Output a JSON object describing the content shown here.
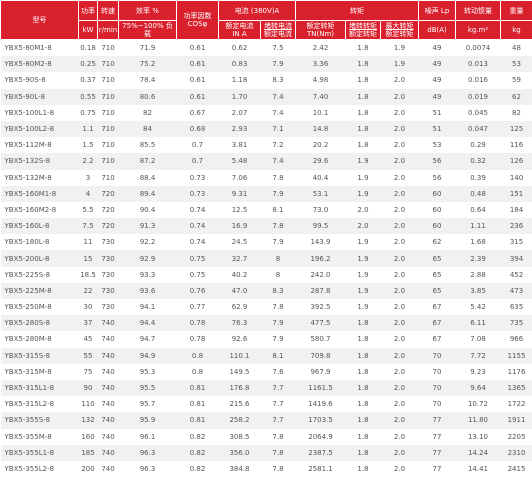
{
  "header": {
    "row1": {
      "model": "型号",
      "power": "功率",
      "speed": "转速",
      "efficiency": "效率 %",
      "pf": "功率因数",
      "pf_sub": "COSφ",
      "current": "电流 (380V)A",
      "torque": "转矩",
      "noise": "噪声 Lp",
      "inertia": "转动惯量",
      "weight": "重量"
    },
    "row2": {
      "power": "kW",
      "speed": "r/min",
      "efficiency": "75%~100% 负载",
      "current_rated": "额定电流",
      "current_rated_sub": "IN A",
      "current_ratio": {
        "top": "堵转电流",
        "bottom": "额定电流"
      },
      "torque_rated": "额定转矩",
      "torque_rated_sub": "TN(Nm)",
      "torque_locked": {
        "top": "堵转转矩",
        "bottom": "额定转矩"
      },
      "torque_max": {
        "top": "最大转矩",
        "bottom": "额定转矩"
      },
      "noise": "dB(A)",
      "inertia": "kg.m²",
      "weight": "kg"
    }
  },
  "table": {
    "rows": [
      [
        "YBX5-80M1-8",
        "0.18",
        "710",
        "71.9",
        "0.61",
        "0.62",
        "7.5",
        "2.42",
        "1.8",
        "1.9",
        "49",
        "0.0074",
        "48"
      ],
      [
        "YBX5-80M2-8",
        "0.25",
        "710",
        "75.2",
        "0.61",
        "0.83",
        "7.9",
        "3.36",
        "1.8",
        "1.9",
        "49",
        "0.013",
        "53"
      ],
      [
        "YBX5-90S-8",
        "0.37",
        "710",
        "78.4",
        "0.61",
        "1.18",
        "8.3",
        "4.98",
        "1.8",
        "2.0",
        "49",
        "0.016",
        "59"
      ],
      [
        "YBX5-90L-8",
        "0.55",
        "710",
        "80.6",
        "0.61",
        "1.70",
        "7.4",
        "7.40",
        "1.8",
        "2.0",
        "49",
        "0.019",
        "62"
      ],
      [
        "YBX5-100L1-8",
        "0.75",
        "710",
        "82",
        "0.67",
        "2.07",
        "7.4",
        "10.1",
        "1.8",
        "2.0",
        "51",
        "0.045",
        "82"
      ],
      [
        "YBX5-100L2-8",
        "1.1",
        "710",
        "84",
        "0.68",
        "2.93",
        "7.1",
        "14.8",
        "1.8",
        "2.0",
        "51",
        "0.047",
        "125"
      ],
      [
        "YBX5-112M-8",
        "1.5",
        "710",
        "85.5",
        "0.7",
        "3.81",
        "7.2",
        "20.2",
        "1.8",
        "2.0",
        "53",
        "0.29",
        "116"
      ],
      [
        "YBX5-132S-8",
        "2.2",
        "710",
        "87.2",
        "0.7",
        "5.48",
        "7.4",
        "29.6",
        "1.9",
        "2.0",
        "56",
        "0.32",
        "126"
      ],
      [
        "YBX5-132M-8",
        "3",
        "710",
        "88.4",
        "0.73",
        "7.06",
        "7.8",
        "40.4",
        "1.9",
        "2.0",
        "56",
        "0.39",
        "140"
      ],
      [
        "YBX5-160M1-8",
        "4",
        "720",
        "89.4",
        "0.73",
        "9.31",
        "7.9",
        "53.1",
        "1.9",
        "2.0",
        "60",
        "0.48",
        "151"
      ],
      [
        "YBX5-160M2-8",
        "5.5",
        "720",
        "90.4",
        "0.74",
        "12.5",
        "8.1",
        "73.0",
        "2.0",
        "2.0",
        "60",
        "0.64",
        "184"
      ],
      [
        "YBX5-160L-8",
        "7.5",
        "720",
        "91.3",
        "0.74",
        "16.9",
        "7.8",
        "99.5",
        "2.0",
        "2.0",
        "60",
        "1.11",
        "236"
      ],
      [
        "YBX5-180L-8",
        "11",
        "730",
        "92.2",
        "0.74",
        "24.5",
        "7.9",
        "143.9",
        "1.9",
        "2.0",
        "62",
        "1.68",
        "315"
      ],
      [
        "YBX5-200L-8",
        "15",
        "730",
        "92.9",
        "0.75",
        "32.7",
        "8",
        "196.2",
        "1.9",
        "2.0",
        "65",
        "2.39",
        "394"
      ],
      [
        "YBX5-225S-8",
        "18.5",
        "730",
        "93.3",
        "0.75",
        "40.2",
        "8",
        "242.0",
        "1.9",
        "2.0",
        "65",
        "2.88",
        "452"
      ],
      [
        "YBX5-225M-8",
        "22",
        "730",
        "93.6",
        "0.76",
        "47.0",
        "8.3",
        "287.8",
        "1.9",
        "2.0",
        "65",
        "3.85",
        "473"
      ],
      [
        "YBX5-250M-8",
        "30",
        "730",
        "94.1",
        "0.77",
        "62.9",
        "7.8",
        "392.5",
        "1.9",
        "2.0",
        "67",
        "5.42",
        "635"
      ],
      [
        "YBX5-280S-8",
        "37",
        "740",
        "94.4",
        "0.78",
        "76.3",
        "7.9",
        "477.5",
        "1.8",
        "2.0",
        "67",
        "6.11",
        "735"
      ],
      [
        "YBX5-280M-8",
        "45",
        "740",
        "94.7",
        "0.78",
        "92.6",
        "7.9",
        "580.7",
        "1.8",
        "2.0",
        "67",
        "7.08",
        "966"
      ],
      [
        "YBX5-315S-8",
        "55",
        "740",
        "94.9",
        "0.8",
        "110.1",
        "8.1",
        "709.8",
        "1.8",
        "2.0",
        "70",
        "7.72",
        "1155"
      ],
      [
        "YBX5-315M-8",
        "75",
        "740",
        "95.3",
        "0.8",
        "149.5",
        "7.6",
        "967.9",
        "1.8",
        "2.0",
        "70",
        "9.23",
        "1176"
      ],
      [
        "YBX5-315L1-8",
        "90",
        "740",
        "95.5",
        "0.81",
        "176.8",
        "7.7",
        "1161.5",
        "1.8",
        "2.0",
        "70",
        "9.64",
        "1365"
      ],
      [
        "YBX5-315L2-8",
        "110",
        "740",
        "95.7",
        "0.81",
        "215.6",
        "7.7",
        "1419.6",
        "1.8",
        "2.0",
        "70",
        "10.72",
        "1722"
      ],
      [
        "YBX5-355S-8",
        "132",
        "740",
        "95.9",
        "0.81",
        "258.2",
        "7.7",
        "1703.5",
        "1.8",
        "2.0",
        "77",
        "11.80",
        "1911"
      ],
      [
        "YBX5-355M-8",
        "160",
        "740",
        "96.1",
        "0.82",
        "308.5",
        "7.8",
        "2064.9",
        "1.8",
        "2.0",
        "77",
        "13.10",
        "2205"
      ],
      [
        "YBX5-355L1-8",
        "185",
        "740",
        "96.3",
        "0.82",
        "356.0",
        "7.8",
        "2387.5",
        "1.8",
        "2.0",
        "77",
        "14.24",
        "2310"
      ],
      [
        "YBX5-355L2-8",
        "200",
        "740",
        "96.3",
        "0.82",
        "384.8",
        "7.8",
        "2581.1",
        "1.8",
        "2.0",
        "77",
        "14.41",
        "2415"
      ]
    ]
  }
}
